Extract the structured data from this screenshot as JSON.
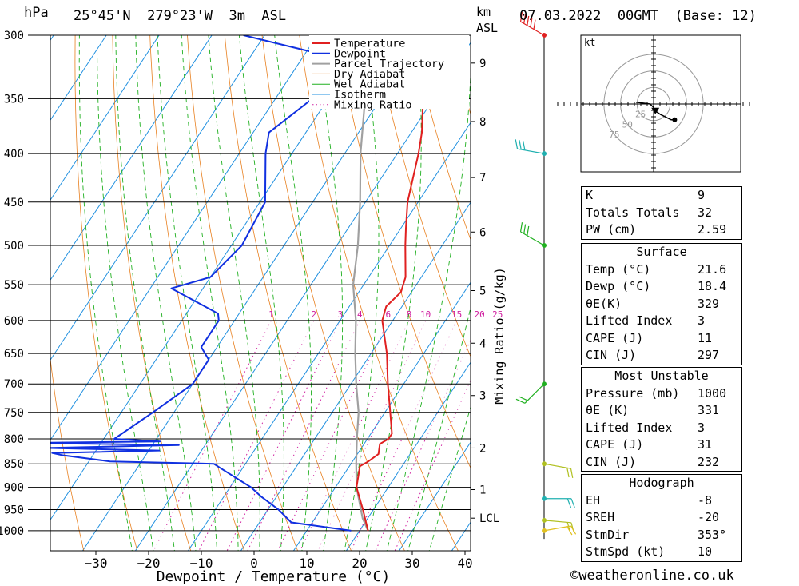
{
  "header": {
    "unit_hpa": "hPa",
    "location": "25°45'N  279°23'W  3m  ASL",
    "unit_km": "km",
    "unit_asl": "ASL",
    "datetime": "07.03.2022  00GMT  (Base: 12)"
  },
  "chart_data": {
    "type": "skew-t",
    "xlabel": "Dewpoint / Temperature (°C)",
    "y2label": "Mixing Ratio (g/kg)",
    "pressure_ticks": [
      300,
      350,
      400,
      450,
      500,
      550,
      600,
      650,
      700,
      750,
      800,
      850,
      900,
      950,
      1000
    ],
    "temp_ticks": [
      -30,
      -20,
      -10,
      0,
      10,
      20,
      30,
      40
    ],
    "km_ticks": [
      {
        "label": "9",
        "p": 321
      },
      {
        "label": "8",
        "p": 370
      },
      {
        "label": "7",
        "p": 424
      },
      {
        "label": "6",
        "p": 484
      },
      {
        "label": "5",
        "p": 558
      },
      {
        "label": "4",
        "p": 634
      },
      {
        "label": "3",
        "p": 720
      },
      {
        "label": "2",
        "p": 818
      },
      {
        "label": "1",
        "p": 905
      },
      {
        "label": "LCL",
        "p": 970
      }
    ],
    "mixing_ratio_labels": [
      "1",
      "2",
      "3",
      "4",
      "6",
      "8",
      "10",
      "15",
      "20",
      "25"
    ],
    "mixing_ratio_values": [
      1,
      2,
      3,
      4,
      6,
      8,
      10,
      15,
      20,
      25
    ],
    "legend": [
      "Temperature",
      "Dewpoint",
      "Parcel Trajectory",
      "Dry Adiabat",
      "Wet Adiabat",
      "Isotherm",
      "Mixing Ratio"
    ],
    "colors": {
      "temperature": "#e02020",
      "dewpoint": "#1030e0",
      "parcel": "#a0a0a0",
      "dry_adiabat": "#e88020",
      "wet_adiabat": "#20b020",
      "isotherm": "#2090e0",
      "mixing_ratio": "#d020a0"
    },
    "temperature": [
      [
        300,
        -30
      ],
      [
        320,
        -27
      ],
      [
        350,
        -22
      ],
      [
        380,
        -18
      ],
      [
        400,
        -16
      ],
      [
        450,
        -12
      ],
      [
        480,
        -9
      ],
      [
        500,
        -7
      ],
      [
        540,
        -3
      ],
      [
        560,
        -2
      ],
      [
        580,
        -3
      ],
      [
        600,
        -2
      ],
      [
        650,
        3
      ],
      [
        700,
        7
      ],
      [
        750,
        11
      ],
      [
        790,
        14
      ],
      [
        800,
        14
      ],
      [
        810,
        13
      ],
      [
        830,
        14
      ],
      [
        845,
        13
      ],
      [
        855,
        12
      ],
      [
        900,
        14
      ],
      [
        950,
        18
      ],
      [
        1000,
        21.6
      ]
    ],
    "dewpoint": [
      [
        300,
        -64
      ],
      [
        320,
        -40
      ],
      [
        350,
        -43
      ],
      [
        380,
        -47
      ],
      [
        400,
        -45
      ],
      [
        450,
        -39
      ],
      [
        500,
        -38
      ],
      [
        540,
        -40
      ],
      [
        555,
        -46
      ],
      [
        590,
        -34
      ],
      [
        600,
        -33
      ],
      [
        640,
        -33
      ],
      [
        660,
        -30
      ],
      [
        700,
        -30
      ],
      [
        750,
        -34
      ],
      [
        800,
        -38
      ],
      [
        805,
        -29
      ],
      [
        808,
        -55
      ],
      [
        812,
        -25
      ],
      [
        818,
        -50
      ],
      [
        823,
        -28
      ],
      [
        828,
        -48
      ],
      [
        832,
        -46
      ],
      [
        845,
        -36
      ],
      [
        850,
        -16
      ],
      [
        860,
        -14
      ],
      [
        900,
        -6
      ],
      [
        920,
        -3
      ],
      [
        950,
        2
      ],
      [
        980,
        6
      ],
      [
        1000,
        18.4
      ]
    ],
    "parcel": [
      [
        1000,
        21.6
      ],
      [
        970,
        19
      ],
      [
        900,
        14
      ],
      [
        850,
        11
      ],
      [
        800,
        8
      ],
      [
        750,
        5
      ],
      [
        700,
        1
      ],
      [
        650,
        -3
      ],
      [
        600,
        -7
      ],
      [
        550,
        -12
      ],
      [
        500,
        -16
      ],
      [
        450,
        -21
      ],
      [
        400,
        -27
      ],
      [
        350,
        -33
      ],
      [
        300,
        -40
      ]
    ],
    "wind_barbs": [
      {
        "p": 300,
        "dir": 300,
        "speed": 45,
        "color": "#e02020"
      },
      {
        "p": 400,
        "dir": 280,
        "speed": 30,
        "color": "#20b0b0"
      },
      {
        "p": 500,
        "dir": 300,
        "speed": 25,
        "color": "#20b020"
      },
      {
        "p": 700,
        "dir": 225,
        "speed": 15,
        "color": "#20b020"
      },
      {
        "p": 850,
        "dir": 100,
        "speed": 15,
        "color": "#b0c020"
      },
      {
        "p": 925,
        "dir": 90,
        "speed": 20,
        "color": "#20b0b0"
      },
      {
        "p": 975,
        "dir": 95,
        "speed": 15,
        "color": "#b0c020"
      },
      {
        "p": 1000,
        "dir": 80,
        "speed": 15,
        "color": "#e0c020"
      }
    ],
    "hodograph": {
      "unit": "kt",
      "rings": [
        25,
        50,
        75
      ],
      "trace": [
        [
          -10,
          1
        ],
        [
          -2,
          0
        ],
        [
          0,
          -2
        ],
        [
          1,
          -4
        ],
        [
          4,
          -6
        ],
        [
          10,
          -9
        ],
        [
          12,
          -9
        ]
      ],
      "storm_motion": [
        1,
        -4
      ]
    }
  },
  "indices": [
    {
      "label": "K",
      "value": "9"
    },
    {
      "label": "Totals Totals",
      "value": "32"
    },
    {
      "label": "PW (cm)",
      "value": "2.59"
    }
  ],
  "surface": {
    "title": "Surface",
    "rows": [
      {
        "label": "Temp (°C)",
        "value": "21.6"
      },
      {
        "label": "Dewp (°C)",
        "value": "18.4"
      },
      {
        "label": "θE(K)",
        "value": "329"
      },
      {
        "label": "Lifted Index",
        "value": "3"
      },
      {
        "label": "CAPE (J)",
        "value": "11"
      },
      {
        "label": "CIN (J)",
        "value": "297"
      }
    ]
  },
  "most_unstable": {
    "title": "Most Unstable",
    "rows": [
      {
        "label": "Pressure (mb)",
        "value": "1000"
      },
      {
        "label": "θE (K)",
        "value": "331"
      },
      {
        "label": "Lifted Index",
        "value": "3"
      },
      {
        "label": "CAPE (J)",
        "value": "31"
      },
      {
        "label": "CIN (J)",
        "value": "232"
      }
    ]
  },
  "hodograph_table": {
    "title": "Hodograph",
    "rows": [
      {
        "label": "EH",
        "value": "-8"
      },
      {
        "label": "SREH",
        "value": "-20"
      },
      {
        "label": "StmDir",
        "value": "353°"
      },
      {
        "label": "StmSpd (kt)",
        "value": "10"
      }
    ]
  },
  "credit": "©weatheronline.co.uk"
}
